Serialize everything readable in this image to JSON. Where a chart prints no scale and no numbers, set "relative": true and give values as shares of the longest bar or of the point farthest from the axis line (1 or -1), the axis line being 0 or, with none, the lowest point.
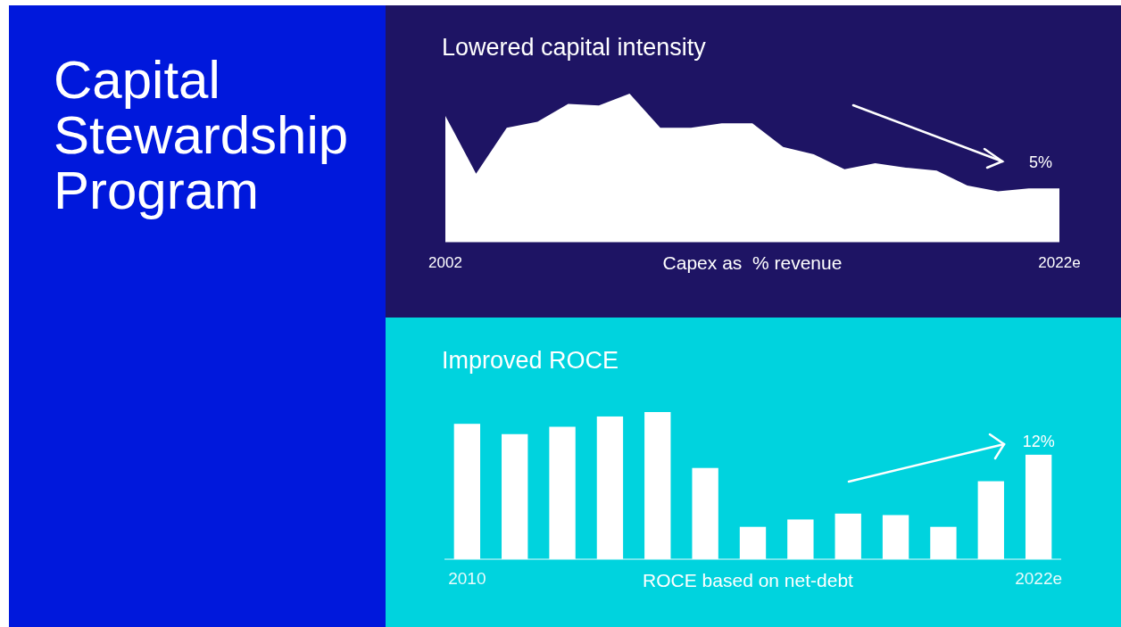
{
  "chart_data": [
    {
      "type": "other",
      "title": "Capital Stewardship Program"
    },
    {
      "type": "area",
      "title": "Lowered capital intensity",
      "xlabel": "Capex as  % revenue",
      "relative": true,
      "color": "#ffffff",
      "categories": [
        "2002",
        null,
        null,
        null,
        null,
        null,
        null,
        null,
        null,
        null,
        null,
        null,
        null,
        null,
        null,
        null,
        null,
        null,
        null,
        null,
        "2022e"
      ],
      "values": [
        0.85,
        0.46,
        0.77,
        0.81,
        0.93,
        0.92,
        1,
        0.77,
        0.77,
        0.8,
        0.8,
        0.64,
        0.59,
        0.49,
        0.53,
        0.5,
        0.48,
        0.38,
        0.34,
        0.36,
        0.36
      ],
      "annotations": [
        "5%"
      ]
    },
    {
      "type": "bar",
      "title": "Improved ROCE",
      "xlabel": "ROCE based on net-debt",
      "relative": true,
      "color": "#ffffff",
      "categories": [
        "2010",
        null,
        null,
        null,
        null,
        null,
        null,
        null,
        null,
        null,
        null,
        null,
        "2022e"
      ],
      "values": [
        0.92,
        0.85,
        0.9,
        0.97,
        1,
        0.62,
        0.22,
        0.27,
        0.31,
        0.3,
        0.22,
        0.53,
        0.71
      ],
      "annotations": [
        "12%"
      ]
    }
  ]
}
